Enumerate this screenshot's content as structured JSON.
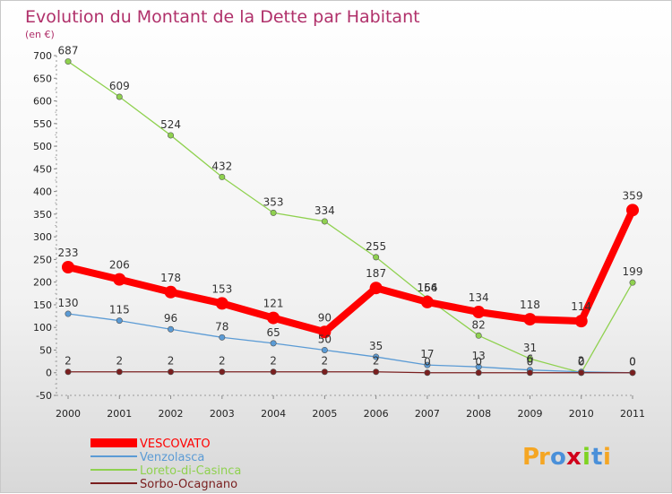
{
  "chart_data": {
    "type": "line",
    "title": "Evolution du Montant de la Dette par Habitant",
    "subtitle": "(en €)",
    "categories": [
      "2000",
      "2001",
      "2002",
      "2003",
      "2004",
      "2005",
      "2006",
      "2007",
      "2008",
      "2009",
      "2010",
      "2011"
    ],
    "ylim": [
      -50,
      700
    ],
    "yticks": [
      -50,
      0,
      50,
      100,
      150,
      200,
      250,
      300,
      350,
      400,
      450,
      500,
      550,
      600,
      650,
      700
    ],
    "grid": false,
    "legend_position": "bottom-left",
    "series": [
      {
        "name": "VESCOVATO",
        "color": "#ff0000",
        "width": 8,
        "values": [
          233,
          206,
          178,
          153,
          121,
          90,
          187,
          156,
          134,
          118,
          114,
          359
        ],
        "labels": [
          "233",
          "206",
          "178",
          "153",
          "121",
          "90",
          "187",
          "156",
          "134",
          "118",
          "114",
          "359"
        ]
      },
      {
        "name": "Venzolasca",
        "color": "#5b9bd5",
        "width": 1.3,
        "values": [
          130,
          115,
          96,
          78,
          65,
          50,
          35,
          17,
          13,
          6,
          2,
          0
        ],
        "labels": [
          "130",
          "115",
          "96",
          "78",
          "65",
          "50",
          "35",
          "17",
          "13",
          "6",
          "2",
          "0"
        ]
      },
      {
        "name": "Loreto-di-Casinca",
        "color": "#8fd14f",
        "width": 1.3,
        "values": [
          687,
          609,
          524,
          432,
          353,
          334,
          255,
          164,
          82,
          31,
          0,
          199
        ],
        "labels": [
          "687",
          "609",
          "524",
          "432",
          "353",
          "334",
          "255",
          "164",
          "82",
          "31",
          "0",
          "199"
        ]
      },
      {
        "name": "Sorbo-Ocagnano",
        "color": "#7a1f1f",
        "width": 1.3,
        "values": [
          2,
          2,
          2,
          2,
          2,
          2,
          2,
          0,
          0,
          0,
          0,
          0
        ],
        "labels": [
          "2",
          "2",
          "2",
          "2",
          "2",
          "2",
          "2",
          "0",
          "0",
          "0",
          "0",
          "0"
        ]
      }
    ]
  },
  "logo": {
    "text": "Proxiti",
    "letters": [
      "P",
      "r",
      "o",
      "x",
      "i",
      "t",
      "i"
    ],
    "colors": [
      "#f5a623",
      "#f5a623",
      "#4a90d9",
      "#d0021b",
      "#7ed321",
      "#4a90d9",
      "#f5a623"
    ]
  }
}
